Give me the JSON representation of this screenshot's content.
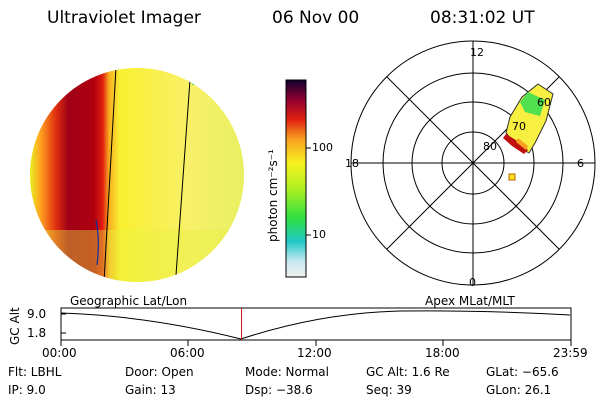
{
  "header": {
    "instrument": "Ultraviolet Imager",
    "date": "06 Nov 00",
    "time": "08:31:02 UT"
  },
  "colorbar": {
    "unit_label": "photon cm⁻²s⁻¹",
    "ticks": [
      "100",
      "10"
    ]
  },
  "polar": {
    "mlt_labels": {
      "top": "12",
      "bottom": "0",
      "left": "18",
      "right": "6"
    },
    "lat_labels": [
      "60",
      "70",
      "80"
    ]
  },
  "mode_labels": {
    "left": "Geographic Lat/Lon",
    "right": "Apex MLat/MLT"
  },
  "altitude_plot": {
    "ylabel": "GC Alt",
    "yticks": [
      "9.0",
      "1.8"
    ],
    "xticks": [
      "00:00",
      "06:00",
      "12:00",
      "18:00",
      "23:59"
    ],
    "current_time_fraction": 0.354
  },
  "status": {
    "flt": "Flt: LBHL",
    "ip": "IP: 9.0",
    "door": "Door: Open",
    "gain": "Gain: 13",
    "mode": "Mode: Normal",
    "dsp": "Dsp: −38.6",
    "gcalt": "GC Alt: 1.6 Re",
    "seq": "Seq: 39",
    "glat": "GLat: −65.6",
    "glon": "GLon: 26.1"
  },
  "colors": {
    "accent_line": "#d01010"
  }
}
